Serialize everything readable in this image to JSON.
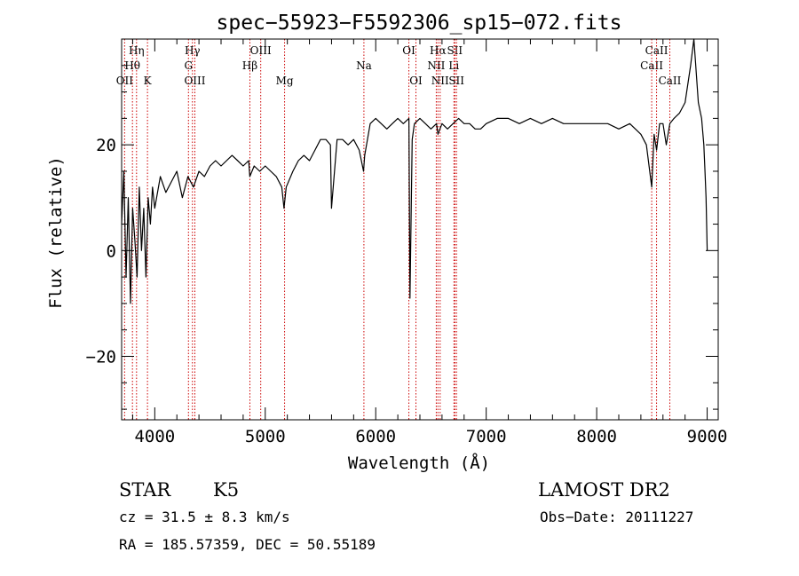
{
  "chart_data": {
    "type": "line",
    "title": "spec−55923−F5592306_sp15−072.fits",
    "xlabel": "Wavelength (Å)",
    "ylabel": "Flux (relative)",
    "xlim": [
      3700,
      9100
    ],
    "ylim": [
      -32,
      40
    ],
    "x_ticks": [
      4000,
      5000,
      6000,
      7000,
      8000,
      9000
    ],
    "y_ticks": [
      -20,
      0,
      20
    ],
    "x_minor_step": 200,
    "y_minor_step": 5,
    "grid": false,
    "line_color": "#000000",
    "marker_color": "#cc0000",
    "series": [
      {
        "x": [
          3700,
          3720,
          3740,
          3760,
          3780,
          3800,
          3820,
          3840,
          3860,
          3880,
          3900,
          3920,
          3940,
          3960,
          3980,
          4000,
          4050,
          4100,
          4150,
          4200,
          4250,
          4300,
          4350,
          4400,
          4450,
          4500,
          4550,
          4600,
          4650,
          4700,
          4750,
          4800,
          4850,
          4860,
          4900,
          4950,
          5000,
          5050,
          5100,
          5150,
          5170,
          5190,
          5250,
          5300,
          5350,
          5400,
          5450,
          5500,
          5550,
          5590,
          5600,
          5650,
          5700,
          5750,
          5800,
          5850,
          5890,
          5900,
          5950,
          6000,
          6050,
          6100,
          6150,
          6200,
          6250,
          6300,
          6310,
          6330,
          6350,
          6400,
          6450,
          6500,
          6550,
          6563,
          6600,
          6650,
          6700,
          6750,
          6800,
          6850,
          6900,
          6950,
          7000,
          7100,
          7200,
          7300,
          7400,
          7500,
          7600,
          7700,
          7800,
          7900,
          8000,
          8100,
          8200,
          8300,
          8400,
          8450,
          8498,
          8520,
          8542,
          8570,
          8600,
          8630,
          8662,
          8700,
          8750,
          8800,
          8850,
          8880,
          8920,
          8950,
          8970,
          8980,
          8990,
          9000
        ],
        "y": [
          5,
          15,
          -5,
          10,
          -10,
          8,
          2,
          -5,
          12,
          0,
          8,
          -5,
          10,
          5,
          12,
          8,
          14,
          11,
          13,
          15,
          10,
          14,
          12,
          15,
          14,
          16,
          17,
          16,
          17,
          18,
          17,
          16,
          17,
          14,
          16,
          15,
          16,
          15,
          14,
          12,
          8,
          12,
          15,
          17,
          18,
          17,
          19,
          21,
          21,
          20,
          8,
          21,
          21,
          20,
          21,
          19,
          15,
          18,
          24,
          25,
          24,
          23,
          24,
          25,
          24,
          25,
          -9,
          21,
          24,
          25,
          24,
          23,
          24,
          22,
          24,
          23,
          24,
          25,
          24,
          24,
          23,
          23,
          24,
          25,
          25,
          24,
          25,
          24,
          25,
          24,
          24,
          24,
          24,
          24,
          23,
          24,
          22,
          20,
          12,
          22,
          19,
          24,
          24,
          20,
          24,
          25,
          26,
          28,
          35,
          40,
          28,
          25,
          20,
          15,
          10,
          0
        ]
      }
    ],
    "line_markers": [
      {
        "label": "OII",
        "x": 3727,
        "row": 3
      },
      {
        "label": "Hθ",
        "x": 3798,
        "row": 2
      },
      {
        "label": "Hη",
        "x": 3835,
        "row": 1
      },
      {
        "label": "K",
        "x": 3934,
        "row": 3
      },
      {
        "label": "G",
        "x": 4305,
        "row": 2
      },
      {
        "label": "Hγ",
        "x": 4341,
        "row": 1
      },
      {
        "label": "OIII",
        "x": 4363,
        "row": 3
      },
      {
        "label": "Hβ",
        "x": 4861,
        "row": 2
      },
      {
        "label": "OIII",
        "x": 4959,
        "row": 1
      },
      {
        "label": "Mg",
        "x": 5175,
        "row": 3
      },
      {
        "label": "Na",
        "x": 5893,
        "row": 2
      },
      {
        "label": "OI",
        "x": 6300,
        "row": 1
      },
      {
        "label": "OI",
        "x": 6364,
        "row": 3
      },
      {
        "label": "NII",
        "x": 6548,
        "row": 2
      },
      {
        "label": "Hα",
        "x": 6563,
        "row": 1
      },
      {
        "label": "NII",
        "x": 6583,
        "row": 3
      },
      {
        "label": "Li",
        "x": 6708,
        "row": 2
      },
      {
        "label": "SII",
        "x": 6716,
        "row": 1
      },
      {
        "label": "SII",
        "x": 6731,
        "row": 3
      },
      {
        "label": "CaII",
        "x": 8498,
        "row": 2
      },
      {
        "label": "CaII",
        "x": 8542,
        "row": 1
      },
      {
        "label": "CaII",
        "x": 8662,
        "row": 3
      }
    ]
  },
  "info": {
    "class": "STAR",
    "subclass": "K5",
    "survey": "LAMOST DR2",
    "cz": "cz = 31.5 ± 8.3 km/s",
    "obs_date": "Obs−Date: 20111227",
    "radec": "RA = 185.57359, DEC =  50.55189"
  }
}
